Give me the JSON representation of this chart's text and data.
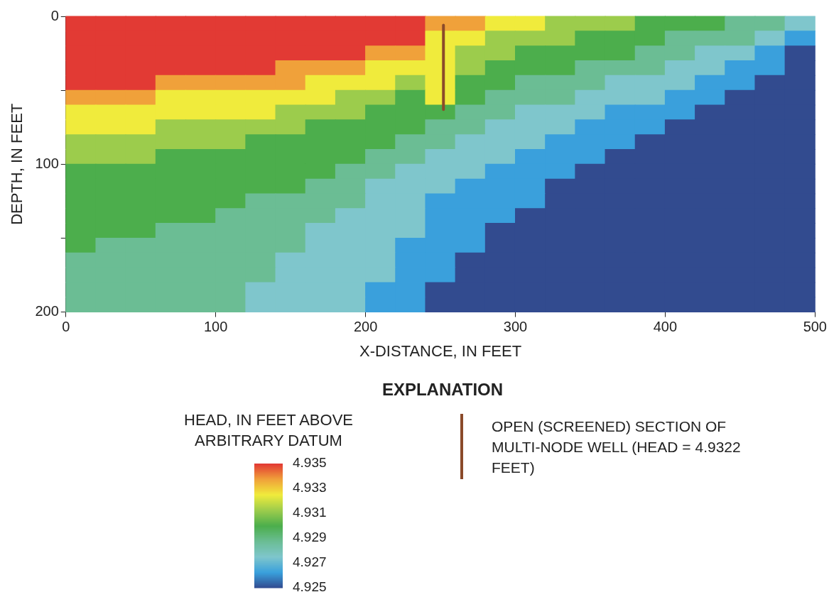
{
  "chart_data": {
    "type": "heatmap",
    "xlabel": "X-DISTANCE, IN FEET",
    "ylabel": "DEPTH, IN FEET",
    "legend_title": "EXPLANATION",
    "clabel": "HEAD, IN FEET ABOVE ARBITRARY DATUM",
    "legend": "bottom",
    "xlim": [
      0,
      500
    ],
    "xticks": [
      0,
      100,
      200,
      300,
      400,
      500
    ],
    "ylim": [
      200,
      0
    ],
    "yticks": [
      0,
      {
        "value": 50,
        "label": null
      },
      100,
      {
        "value": 150,
        "label": null
      },
      200
    ],
    "clim": [
      4.925,
      4.935
    ],
    "cticks": [
      4.925,
      4.927,
      4.929,
      4.931,
      4.933,
      4.935
    ],
    "colors": [
      "#324b8f",
      "#3aa0dc",
      "#7fc6cc",
      "#6bbd94",
      "#4cae4c",
      "#9ccc4c",
      "#f0eb3c",
      "#f0a13a",
      "#e23a34"
    ],
    "x": [
      10,
      30,
      50,
      70,
      90,
      110,
      130,
      150,
      170,
      190,
      210,
      230,
      250,
      270,
      290,
      310,
      330,
      350,
      370,
      390,
      410,
      430,
      450,
      470,
      490
    ],
    "cells": [
      [
        4.935,
        4.935,
        4.935,
        4.935,
        4.935,
        4.935,
        4.935,
        4.935,
        4.935,
        4.935,
        4.935,
        4.935,
        4.93375,
        4.93375,
        4.9325,
        4.9325,
        4.93125,
        4.93125,
        4.93125,
        4.93,
        4.93,
        4.93,
        4.92875,
        4.92875,
        4.9275
      ],
      [
        4.935,
        4.935,
        4.935,
        4.935,
        4.935,
        4.935,
        4.935,
        4.935,
        4.935,
        4.935,
        4.935,
        4.935,
        4.9325,
        4.9325,
        4.93125,
        4.93125,
        4.93125,
        4.93,
        4.93,
        4.93,
        4.92875,
        4.92875,
        4.92875,
        4.9275,
        4.92625
      ],
      [
        4.935,
        4.935,
        4.935,
        4.935,
        4.935,
        4.935,
        4.935,
        4.935,
        4.935,
        4.935,
        4.93375,
        4.93375,
        4.9325,
        4.93125,
        4.93125,
        4.93,
        4.93,
        4.93,
        4.93,
        4.92875,
        4.92875,
        4.9275,
        4.9275,
        4.92625,
        4.925
      ],
      [
        4.935,
        4.935,
        4.935,
        4.935,
        4.935,
        4.935,
        4.935,
        4.93375,
        4.93375,
        4.93375,
        4.9325,
        4.9325,
        4.9325,
        4.93125,
        4.93,
        4.93,
        4.93,
        4.92875,
        4.92875,
        4.92875,
        4.9275,
        4.9275,
        4.92625,
        4.92625,
        4.925
      ],
      [
        4.935,
        4.935,
        4.935,
        4.93375,
        4.93375,
        4.93375,
        4.93375,
        4.93375,
        4.9325,
        4.9325,
        4.9325,
        4.93125,
        4.9325,
        4.93,
        4.93,
        4.92875,
        4.92875,
        4.92875,
        4.9275,
        4.9275,
        4.9275,
        4.92625,
        4.92625,
        4.925,
        4.925
      ],
      [
        4.93375,
        4.93375,
        4.93375,
        4.9325,
        4.9325,
        4.9325,
        4.9325,
        4.9325,
        4.9325,
        4.93125,
        4.93125,
        4.93,
        4.9325,
        4.93,
        4.92875,
        4.92875,
        4.92875,
        4.9275,
        4.9275,
        4.9275,
        4.92625,
        4.92625,
        4.925,
        4.925,
        4.925
      ],
      [
        4.9325,
        4.9325,
        4.9325,
        4.9325,
        4.9325,
        4.9325,
        4.9325,
        4.93125,
        4.93125,
        4.93125,
        4.93,
        4.93,
        4.93,
        4.92875,
        4.92875,
        4.9275,
        4.9275,
        4.9275,
        4.92625,
        4.92625,
        4.92625,
        4.925,
        4.925,
        4.925,
        4.925
      ],
      [
        4.9325,
        4.9325,
        4.9325,
        4.93125,
        4.93125,
        4.93125,
        4.93125,
        4.93125,
        4.93,
        4.93,
        4.93,
        4.93,
        4.92875,
        4.92875,
        4.9275,
        4.9275,
        4.9275,
        4.92625,
        4.92625,
        4.92625,
        4.925,
        4.925,
        4.925,
        4.925,
        4.925
      ],
      [
        4.93125,
        4.93125,
        4.93125,
        4.93125,
        4.93125,
        4.93125,
        4.93,
        4.93,
        4.93,
        4.93,
        4.93,
        4.92875,
        4.92875,
        4.9275,
        4.9275,
        4.9275,
        4.92625,
        4.92625,
        4.92625,
        4.925,
        4.925,
        4.925,
        4.925,
        4.925,
        4.925
      ],
      [
        4.93125,
        4.93125,
        4.93125,
        4.93,
        4.93,
        4.93,
        4.93,
        4.93,
        4.93,
        4.93,
        4.92875,
        4.92875,
        4.9275,
        4.9275,
        4.9275,
        4.92625,
        4.92625,
        4.92625,
        4.925,
        4.925,
        4.925,
        4.925,
        4.925,
        4.925,
        4.925
      ],
      [
        4.93,
        4.93,
        4.93,
        4.93,
        4.93,
        4.93,
        4.93,
        4.93,
        4.93,
        4.92875,
        4.92875,
        4.9275,
        4.9275,
        4.9275,
        4.92625,
        4.92625,
        4.92625,
        4.925,
        4.925,
        4.925,
        4.925,
        4.925,
        4.925,
        4.925,
        4.925
      ],
      [
        4.93,
        4.93,
        4.93,
        4.93,
        4.93,
        4.93,
        4.93,
        4.93,
        4.92875,
        4.92875,
        4.9275,
        4.9275,
        4.9275,
        4.92625,
        4.92625,
        4.92625,
        4.925,
        4.925,
        4.925,
        4.925,
        4.925,
        4.925,
        4.925,
        4.925,
        4.925
      ],
      [
        4.93,
        4.93,
        4.93,
        4.93,
        4.93,
        4.93,
        4.92875,
        4.92875,
        4.92875,
        4.92875,
        4.9275,
        4.9275,
        4.92625,
        4.92625,
        4.92625,
        4.92625,
        4.925,
        4.925,
        4.925,
        4.925,
        4.925,
        4.925,
        4.925,
        4.925,
        4.925
      ],
      [
        4.93,
        4.93,
        4.93,
        4.93,
        4.93,
        4.92875,
        4.92875,
        4.92875,
        4.92875,
        4.9275,
        4.9275,
        4.9275,
        4.92625,
        4.92625,
        4.92625,
        4.925,
        4.925,
        4.925,
        4.925,
        4.925,
        4.925,
        4.925,
        4.925,
        4.925,
        4.925
      ],
      [
        4.93,
        4.93,
        4.93,
        4.92875,
        4.92875,
        4.92875,
        4.92875,
        4.92875,
        4.9275,
        4.9275,
        4.9275,
        4.9275,
        4.92625,
        4.92625,
        4.925,
        4.925,
        4.925,
        4.925,
        4.925,
        4.925,
        4.925,
        4.925,
        4.925,
        4.925,
        4.925
      ],
      [
        4.93,
        4.92875,
        4.92875,
        4.92875,
        4.92875,
        4.92875,
        4.92875,
        4.92875,
        4.9275,
        4.9275,
        4.9275,
        4.92625,
        4.92625,
        4.92625,
        4.925,
        4.925,
        4.925,
        4.925,
        4.925,
        4.925,
        4.925,
        4.925,
        4.925,
        4.925,
        4.925
      ],
      [
        4.92875,
        4.92875,
        4.92875,
        4.92875,
        4.92875,
        4.92875,
        4.92875,
        4.9275,
        4.9275,
        4.9275,
        4.9275,
        4.92625,
        4.92625,
        4.925,
        4.925,
        4.925,
        4.925,
        4.925,
        4.925,
        4.925,
        4.925,
        4.925,
        4.925,
        4.925,
        4.925
      ],
      [
        4.92875,
        4.92875,
        4.92875,
        4.92875,
        4.92875,
        4.92875,
        4.92875,
        4.9275,
        4.9275,
        4.9275,
        4.9275,
        4.92625,
        4.92625,
        4.925,
        4.925,
        4.925,
        4.925,
        4.925,
        4.925,
        4.925,
        4.925,
        4.925,
        4.925,
        4.925,
        4.925
      ],
      [
        4.92875,
        4.92875,
        4.92875,
        4.92875,
        4.92875,
        4.92875,
        4.9275,
        4.9275,
        4.9275,
        4.9275,
        4.92625,
        4.92625,
        4.925,
        4.925,
        4.925,
        4.925,
        4.925,
        4.925,
        4.925,
        4.925,
        4.925,
        4.925,
        4.925,
        4.925,
        4.925
      ],
      [
        4.92875,
        4.92875,
        4.92875,
        4.92875,
        4.92875,
        4.92875,
        4.9275,
        4.9275,
        4.9275,
        4.9275,
        4.92625,
        4.92625,
        4.925,
        4.925,
        4.925,
        4.925,
        4.925,
        4.925,
        4.925,
        4.925,
        4.925,
        4.925,
        4.925,
        4.925,
        4.925
      ]
    ],
    "series": [
      {
        "type": "line",
        "name": "OPEN (SCREENED) SECTION OF MULTI-NODE WELL (HEAD = 4.9322 FEET)",
        "color": "#8b4a2a",
        "x": [
          252,
          252
        ],
        "values": [
          6,
          63
        ]
      }
    ]
  }
}
